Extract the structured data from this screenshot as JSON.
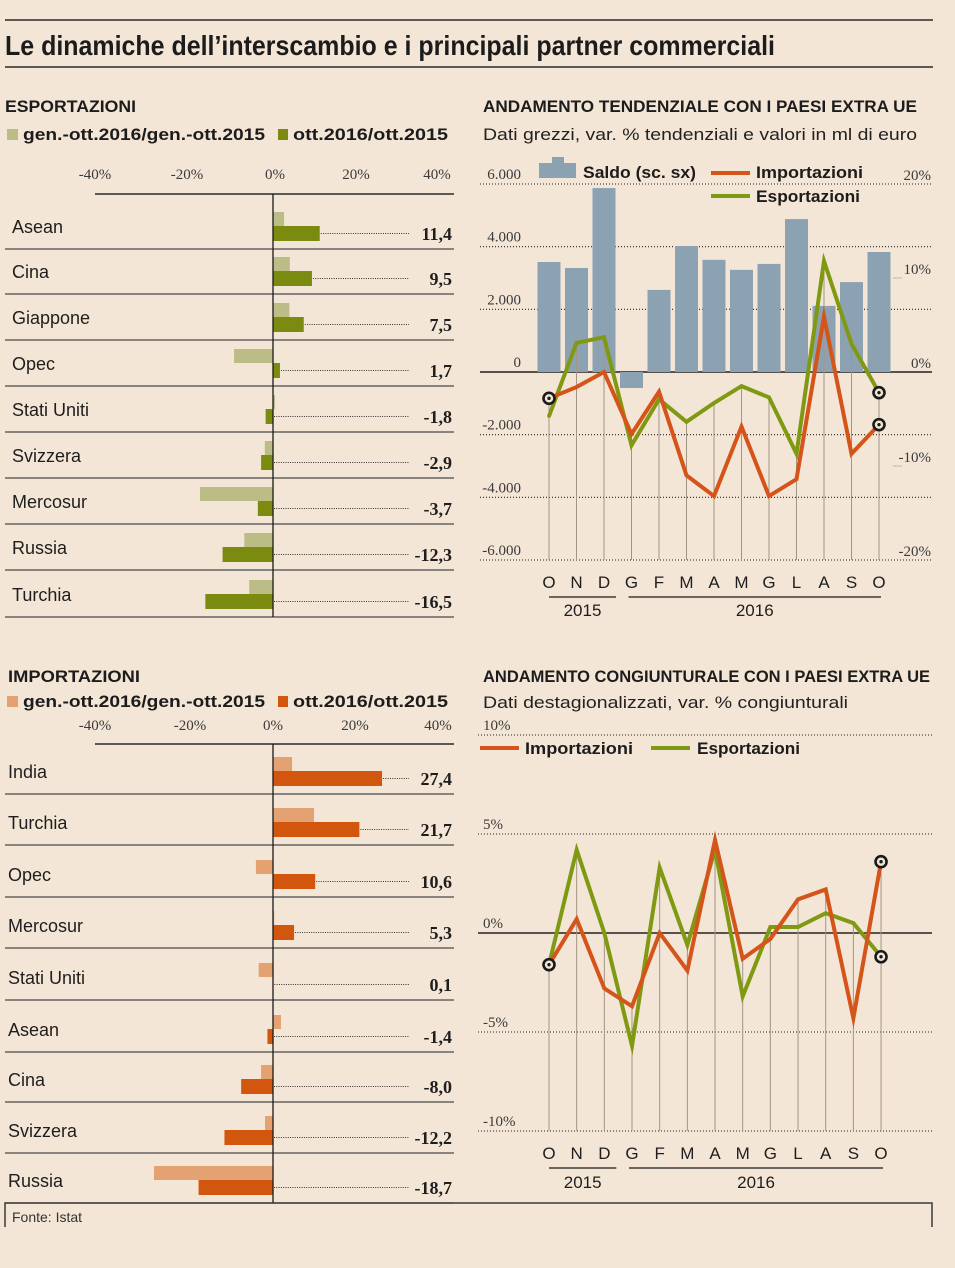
{
  "page": {
    "title": "Le dinamiche dell’interscambio e i principali partner commerciali",
    "source": "Fonte: Istat"
  },
  "chart_data": [
    {
      "type": "bar",
      "orientation": "horizontal",
      "title": "ESPORTAZIONI",
      "categories": [
        "Asean",
        "Cina",
        "Giappone",
        "Opec",
        "Stati Uniti",
        "Svizzera",
        "Mercosur",
        "Russia",
        "Turchia"
      ],
      "series": [
        {
          "name": "gen.-ott.2016/gen.-ott.2015",
          "color": "#bcbd86",
          "values": [
            2.7,
            4.1,
            4.0,
            -9.5,
            0.5,
            -2.0,
            -17.8,
            -7.0,
            -5.8
          ]
        },
        {
          "name": "ott.2016/ott.2015",
          "color": "#7b8b10",
          "values": [
            11.4,
            9.5,
            7.5,
            1.7,
            -1.8,
            -2.9,
            -3.7,
            -12.3,
            -16.5
          ],
          "labels": [
            "11,4",
            "9,5",
            "7,5",
            "1,7",
            "-1,8",
            "-2,9",
            "-3,7",
            "-12,3",
            "-16,5"
          ]
        }
      ],
      "xlim": [
        -40,
        40
      ],
      "xticks": [
        -40,
        -20,
        0,
        20,
        40
      ],
      "xtick_labels": [
        "-40%",
        "-20%",
        "0%",
        "20%",
        "40%"
      ],
      "xlabel": "",
      "ylabel": "",
      "legend": "top-left",
      "grid": false
    },
    {
      "type": "bar",
      "orientation": "horizontal",
      "title": "IMPORTAZIONI",
      "categories": [
        "India",
        "Turchia",
        "Opec",
        "Mercosur",
        "Stati Uniti",
        "Asean",
        "Cina",
        "Svizzera",
        "Russia"
      ],
      "series": [
        {
          "name": "gen.-ott.2016/gen.-ott.2015",
          "color": "#e4a273",
          "values": [
            4.8,
            10.3,
            -4.3,
            0.3,
            -3.6,
            2.0,
            -3.0,
            -2.0,
            -29.9
          ]
        },
        {
          "name": "ott.2016/ott.2015",
          "color": "#d2560e",
          "values": [
            27.4,
            21.7,
            10.6,
            5.3,
            0.1,
            -1.4,
            -8.0,
            -12.2,
            -18.7
          ],
          "labels": [
            "27,4",
            "21,7",
            "10,6",
            "5,3",
            "0,1",
            "-1,4",
            "-8,0",
            "-12,2",
            "-18,7"
          ]
        }
      ],
      "xlim": [
        -40,
        40
      ],
      "xticks": [
        -40,
        -20,
        0,
        20,
        40
      ],
      "xtick_labels": [
        "-40%",
        "-20%",
        "0%",
        "20%",
        "40%"
      ],
      "xlabel": "",
      "ylabel": "",
      "legend": "top-left",
      "grid": false
    },
    {
      "type": "bar+line",
      "title": "ANDAMENTO TENDENZIALE CON I PAESI EXTRA UE",
      "subtitle": "Dati grezzi, var. % tendenziali e valori in ml di euro",
      "categories": [
        "O",
        "N",
        "D",
        "G",
        "F",
        "M",
        "A",
        "M",
        "G",
        "L",
        "A",
        "S",
        "O"
      ],
      "year_groups": [
        {
          "label": "2015",
          "span": 3
        },
        {
          "label": "2016",
          "span": 10
        }
      ],
      "series": [
        {
          "name": "Saldo (sc. sx)",
          "type": "bar",
          "axis": "left",
          "color": "#8ca2b2",
          "values": [
            3510,
            3320,
            5870,
            -510,
            2620,
            4020,
            3580,
            3260,
            3450,
            4880,
            2110,
            2870,
            3830
          ]
        },
        {
          "name": "Importazioni",
          "type": "line",
          "axis": "right",
          "color": "#d4541a",
          "values": [
            -2.8,
            -1.6,
            0.0,
            -6.6,
            -2.1,
            -11.0,
            -13.2,
            -5.8,
            -13.2,
            -11.4,
            5.9,
            -8.7,
            -5.6
          ]
        },
        {
          "name": "Esportazioni",
          "type": "line",
          "axis": "right",
          "color": "#809913",
          "values": [
            -4.7,
            3.1,
            3.7,
            -7.8,
            -2.9,
            -5.3,
            -3.3,
            -1.5,
            -2.7,
            -8.7,
            11.8,
            3.0,
            -2.2
          ]
        }
      ],
      "ylim_left": [
        -6000,
        6000
      ],
      "yticks_left": [
        6000,
        4000,
        2000,
        0,
        -2000,
        -4000,
        -6000
      ],
      "ytick_labels_left": [
        "6.000",
        "4.000",
        "2.000",
        "0",
        "-2.000",
        "-4.000",
        "-6.000"
      ],
      "ylim_right": [
        -20,
        20
      ],
      "yticks_right": [
        20,
        10,
        0,
        -10,
        -20
      ],
      "ytick_labels_right": [
        "20%",
        "10%",
        "0%",
        "-10%",
        "-20%"
      ],
      "xlabel": "",
      "ylabel": "",
      "legend": "top",
      "grid": true
    },
    {
      "type": "line",
      "title": "ANDAMENTO CONGIUNTURALE CON I PAESI EXTRA UE",
      "subtitle": "Dati destagionalizzati, var. % congiunturali",
      "categories": [
        "O",
        "N",
        "D",
        "G",
        "F",
        "M",
        "A",
        "M",
        "G",
        "L",
        "A",
        "S",
        "O"
      ],
      "year_groups": [
        {
          "label": "2015",
          "span": 3
        },
        {
          "label": "2016",
          "span": 10
        }
      ],
      "series": [
        {
          "name": "Importazioni",
          "color": "#d4541a",
          "values": [
            -1.6,
            0.7,
            -2.8,
            -3.7,
            0.0,
            -1.9,
            4.7,
            -1.3,
            -0.3,
            1.7,
            2.2,
            -4.3,
            3.6
          ]
        },
        {
          "name": "Esportazioni",
          "color": "#809913",
          "values": [
            -1.6,
            4.2,
            0.0,
            -5.7,
            3.3,
            -0.6,
            4.2,
            -3.2,
            0.3,
            0.3,
            1.0,
            0.5,
            -1.2
          ]
        }
      ],
      "ylim": [
        -10,
        10
      ],
      "yticks": [
        10,
        5,
        0,
        -5,
        -10
      ],
      "ytick_labels": [
        "10%",
        "5%",
        "0%",
        "-5%",
        "-10%"
      ],
      "xlabel": "",
      "ylabel": "",
      "legend": "top-left",
      "grid": true
    }
  ]
}
